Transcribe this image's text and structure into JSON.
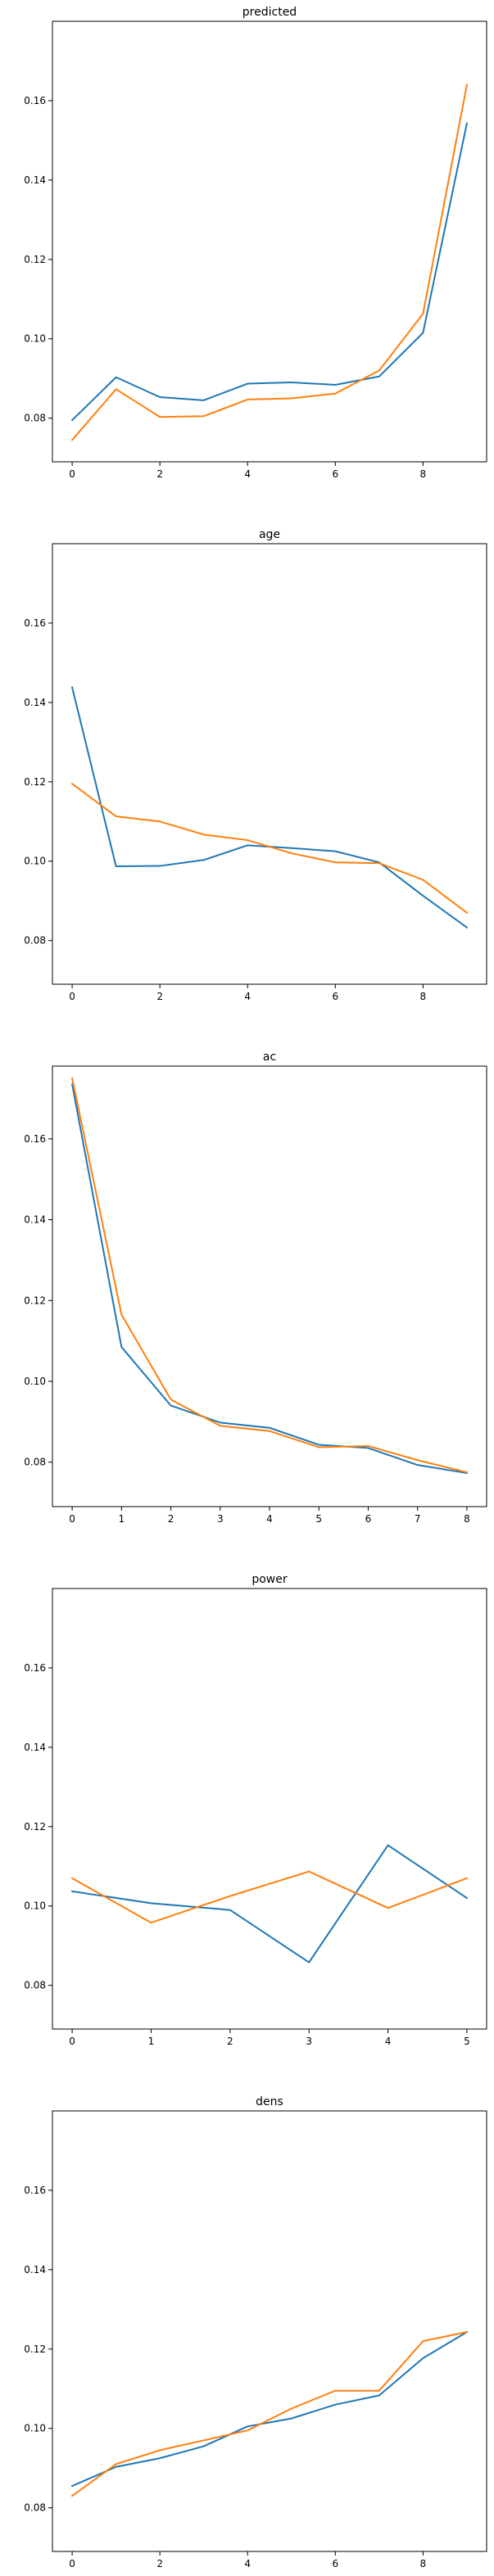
{
  "chart_data": [
    {
      "type": "line",
      "title": "predicted",
      "xlabel": "",
      "ylabel": "",
      "x": [
        0,
        1,
        2,
        3,
        4,
        5,
        6,
        7,
        8,
        9
      ],
      "xticks": [
        0,
        2,
        4,
        6,
        8
      ],
      "xlim": [
        -0.45,
        9.45
      ],
      "yticks": [
        0.08,
        0.1,
        0.12,
        0.14,
        0.16
      ],
      "ylim": [
        0.069,
        0.18
      ],
      "grid": false,
      "series": [
        {
          "color": "#1f77b4",
          "values": [
            0.0795,
            0.0903,
            0.0853,
            0.0845,
            0.0887,
            0.089,
            0.0884,
            0.0905,
            0.1015,
            0.1543
          ]
        },
        {
          "color": "#ff7f0e",
          "values": [
            0.0745,
            0.0873,
            0.0803,
            0.0805,
            0.0847,
            0.085,
            0.0862,
            0.092,
            0.1063,
            0.164
          ]
        }
      ]
    },
    {
      "type": "line",
      "title": "age",
      "xlabel": "",
      "ylabel": "",
      "x": [
        0,
        1,
        2,
        3,
        4,
        5,
        6,
        7,
        8,
        9
      ],
      "xticks": [
        0,
        2,
        4,
        6,
        8
      ],
      "xlim": [
        -0.45,
        9.45
      ],
      "yticks": [
        0.08,
        0.1,
        0.12,
        0.14,
        0.16
      ],
      "ylim": [
        0.069,
        0.18
      ],
      "grid": false,
      "series": [
        {
          "color": "#1f77b4",
          "values": [
            0.1438,
            0.0987,
            0.0988,
            0.1003,
            0.104,
            0.1033,
            0.1025,
            0.0997,
            0.0913,
            0.0833
          ]
        },
        {
          "color": "#ff7f0e",
          "values": [
            0.1195,
            0.1113,
            0.11,
            0.1067,
            0.1053,
            0.102,
            0.0997,
            0.0995,
            0.0953,
            0.087
          ]
        }
      ]
    },
    {
      "type": "line",
      "title": "ac",
      "xlabel": "",
      "ylabel": "",
      "x": [
        0,
        1,
        2,
        3,
        4,
        5,
        6,
        7,
        8
      ],
      "xticks": [
        0,
        1,
        2,
        3,
        4,
        5,
        6,
        7,
        8
      ],
      "xlim": [
        -0.4,
        8.4
      ],
      "yticks": [
        0.08,
        0.1,
        0.12,
        0.14,
        0.16
      ],
      "ylim": [
        0.069,
        0.178
      ],
      "grid": false,
      "series": [
        {
          "color": "#1f77b4",
          "values": [
            0.1735,
            0.1085,
            0.094,
            0.0898,
            0.0885,
            0.0843,
            0.0835,
            0.0793,
            0.0773
          ]
        },
        {
          "color": "#ff7f0e",
          "values": [
            0.175,
            0.1165,
            0.0955,
            0.089,
            0.0877,
            0.0837,
            0.084,
            0.0805,
            0.0775
          ]
        }
      ]
    },
    {
      "type": "line",
      "title": "power",
      "xlabel": "",
      "ylabel": "",
      "x": [
        0,
        1,
        2,
        3,
        4,
        5
      ],
      "xticks": [
        0,
        1,
        2,
        3,
        4,
        5
      ],
      "xlim": [
        -0.25,
        5.25
      ],
      "yticks": [
        0.08,
        0.1,
        0.12,
        0.14,
        0.16
      ],
      "ylim": [
        0.069,
        0.18
      ],
      "grid": false,
      "series": [
        {
          "color": "#1f77b4",
          "values": [
            0.1037,
            0.1007,
            0.099,
            0.0858,
            0.1153,
            0.102
          ]
        },
        {
          "color": "#ff7f0e",
          "values": [
            0.107,
            0.0958,
            0.1025,
            0.1087,
            0.0995,
            0.107
          ]
        }
      ]
    },
    {
      "type": "line",
      "title": "dens",
      "xlabel": "",
      "ylabel": "",
      "x": [
        0,
        1,
        2,
        3,
        4,
        5,
        6,
        7,
        8,
        9
      ],
      "xticks": [
        0,
        2,
        4,
        6,
        8
      ],
      "xlim": [
        -0.45,
        9.45
      ],
      "yticks": [
        0.08,
        0.1,
        0.12,
        0.14,
        0.16
      ],
      "ylim": [
        0.069,
        0.18
      ],
      "grid": false,
      "series": [
        {
          "color": "#1f77b4",
          "values": [
            0.0855,
            0.0903,
            0.0925,
            0.0955,
            0.1005,
            0.1025,
            0.106,
            0.1083,
            0.1177,
            0.1243
          ]
        },
        {
          "color": "#ff7f0e",
          "values": [
            0.083,
            0.091,
            0.0945,
            0.097,
            0.0995,
            0.105,
            0.1095,
            0.1095,
            0.122,
            0.1243
          ]
        }
      ]
    }
  ]
}
